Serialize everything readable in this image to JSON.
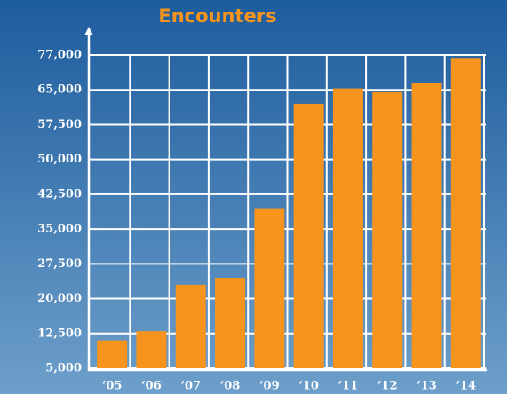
{
  "chart_data": {
    "type": "bar",
    "title": "Encounters",
    "categories": [
      "‘05",
      "‘06",
      "‘07",
      "‘08",
      "‘09",
      "‘10",
      "‘11",
      "‘12",
      "‘13",
      "‘14"
    ],
    "values": [
      11000,
      13000,
      23000,
      24500,
      39500,
      62000,
      65500,
      64500,
      67500,
      76000
    ],
    "color": "#f7941d",
    "ylim": [
      5000,
      77000
    ],
    "yticks": [
      {
        "value": 5000,
        "label": "5,000"
      },
      {
        "value": 12500,
        "label": "12,500"
      },
      {
        "value": 20000,
        "label": "20,000"
      },
      {
        "value": 27500,
        "label": "27,500"
      },
      {
        "value": 35000,
        "label": "35,000"
      },
      {
        "value": 42500,
        "label": "42,500"
      },
      {
        "value": 50000,
        "label": "50,000"
      },
      {
        "value": 57500,
        "label": "57,500"
      },
      {
        "value": 65000,
        "label": "65,000"
      },
      {
        "value": 77000,
        "label": "77,000"
      }
    ],
    "grid": true
  }
}
